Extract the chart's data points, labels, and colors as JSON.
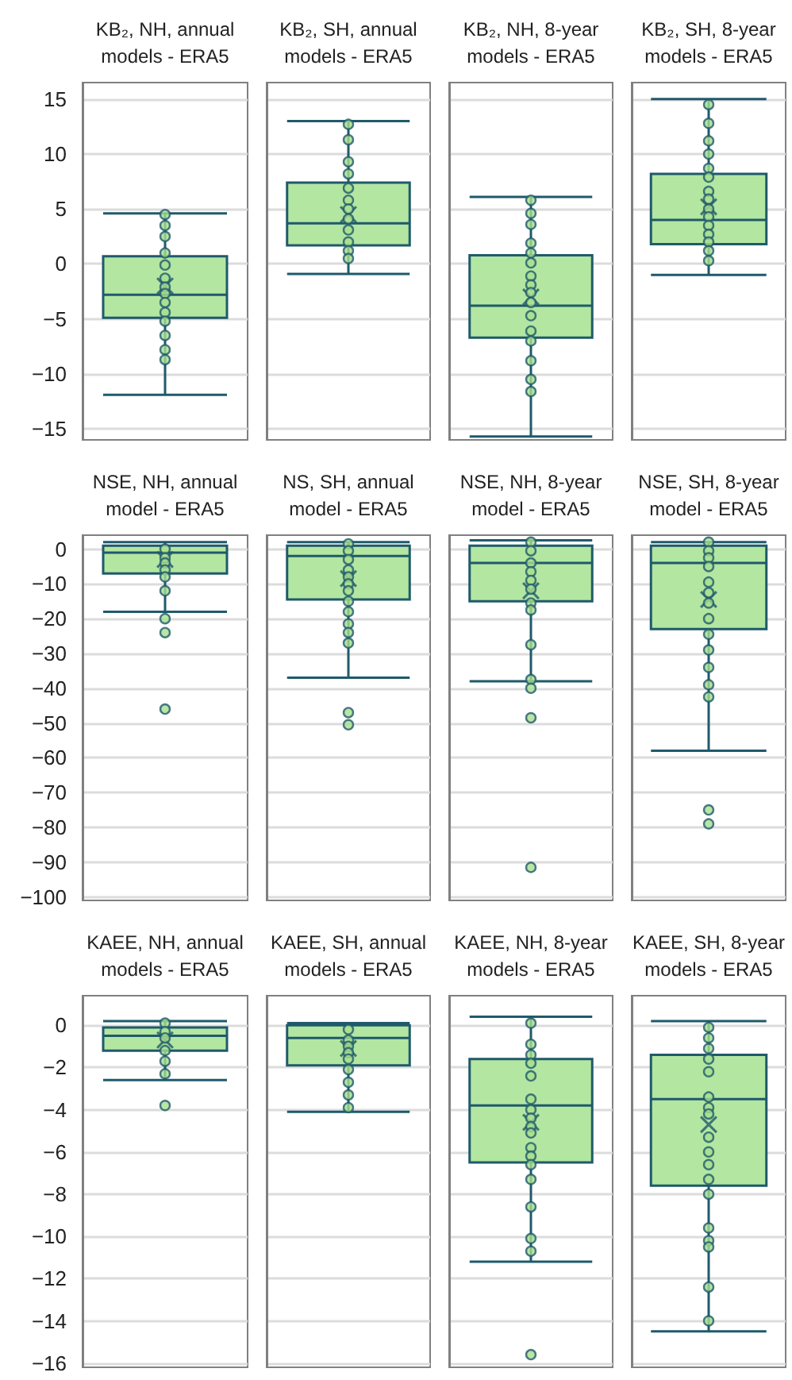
{
  "chart_data": [
    {
      "type": "box",
      "categories": [
        "KB₂, NH, annual\nmodels - ERA5",
        "KB₂, SH, annual\nmodels - ERA5",
        "KB₂, NH, 8-year\nmodels - ERA5",
        "KB₂, SH, 8-year\nmodels - ERA5"
      ],
      "ylim": [
        -16,
        16.5
      ],
      "yticks": [
        -15,
        -10,
        -5,
        0,
        5,
        10,
        15
      ],
      "grid": "y",
      "marker": "circle",
      "series": [
        {
          "type": "box",
          "color": "#b3e6a1",
          "boxes": [
            {
              "low": -11.9,
              "q1": -4.9,
              "median": -2.8,
              "q3": 0.7,
              "high": 4.6,
              "mean": -2.0
            },
            {
              "low": -0.9,
              "q1": 1.7,
              "median": 3.7,
              "q3": 7.4,
              "high": 13.0,
              "mean": 4.5
            },
            {
              "low": -15.7,
              "q1": -6.7,
              "median": -3.8,
              "q3": 0.8,
              "high": 6.1,
              "mean": -3.0
            },
            {
              "low": -1.0,
              "q1": 1.8,
              "median": 4.0,
              "q3": 8.2,
              "high": 15.0,
              "mean": 5.2
            }
          ]
        },
        {
          "type": "scatter",
          "color": "#a7df8f",
          "x": [
            "KB₂, NH, annual\nmodels - ERA5",
            "KB₂, NH, annual\nmodels - ERA5",
            "KB₂, NH, annual\nmodels - ERA5",
            "KB₂, NH, annual\nmodels - ERA5",
            "KB₂, NH, annual\nmodels - ERA5",
            "KB₂, NH, annual\nmodels - ERA5",
            "KB₂, NH, annual\nmodels - ERA5",
            "KB₂, NH, annual\nmodels - ERA5",
            "KB₂, NH, annual\nmodels - ERA5",
            "KB₂, NH, annual\nmodels - ERA5",
            "KB₂, NH, annual\nmodels - ERA5",
            "KB₂, NH, annual\nmodels - ERA5",
            "KB₂, NH, annual\nmodels - ERA5",
            "KB₂, NH, annual\nmodels - ERA5",
            "KB₂, SH, annual\nmodels - ERA5",
            "KB₂, SH, annual\nmodels - ERA5",
            "KB₂, SH, annual\nmodels - ERA5",
            "KB₂, SH, annual\nmodels - ERA5",
            "KB₂, SH, annual\nmodels - ERA5",
            "KB₂, SH, annual\nmodels - ERA5",
            "KB₂, SH, annual\nmodels - ERA5",
            "KB₂, SH, annual\nmodels - ERA5",
            "KB₂, SH, annual\nmodels - ERA5",
            "KB₂, SH, annual\nmodels - ERA5",
            "KB₂, SH, annual\nmodels - ERA5",
            "KB₂, SH, annual\nmodels - ERA5",
            "KB₂, NH, 8-year\nmodels - ERA5",
            "KB₂, NH, 8-year\nmodels - ERA5",
            "KB₂, NH, 8-year\nmodels - ERA5",
            "KB₂, NH, 8-year\nmodels - ERA5",
            "KB₂, NH, 8-year\nmodels - ERA5",
            "KB₂, NH, 8-year\nmodels - ERA5",
            "KB₂, NH, 8-year\nmodels - ERA5",
            "KB₂, NH, 8-year\nmodels - ERA5",
            "KB₂, NH, 8-year\nmodels - ERA5",
            "KB₂, NH, 8-year\nmodels - ERA5",
            "KB₂, NH, 8-year\nmodels - ERA5",
            "KB₂, NH, 8-year\nmodels - ERA5",
            "KB₂, NH, 8-year\nmodels - ERA5",
            "KB₂, NH, 8-year\nmodels - ERA5",
            "KB₂, NH, 8-year\nmodels - ERA5",
            "KB₂, NH, 8-year\nmodels - ERA5",
            "KB₂, SH, 8-year\nmodels - ERA5",
            "KB₂, SH, 8-year\nmodels - ERA5",
            "KB₂, SH, 8-year\nmodels - ERA5",
            "KB₂, SH, 8-year\nmodels - ERA5",
            "KB₂, SH, 8-year\nmodels - ERA5",
            "KB₂, SH, 8-year\nmodels - ERA5",
            "KB₂, SH, 8-year\nmodels - ERA5",
            "KB₂, SH, 8-year\nmodels - ERA5",
            "KB₂, SH, 8-year\nmodels - ERA5",
            "KB₂, SH, 8-year\nmodels - ERA5",
            "KB₂, SH, 8-year\nmodels - ERA5",
            "KB₂, SH, 8-year\nmodels - ERA5",
            "KB₂, SH, 8-year\nmodels - ERA5",
            "KB₂, SH, 8-year\nmodels - ERA5",
            "KB₂, SH, 8-year\nmodels - ERA5"
          ],
          "values": [
            4.5,
            3.5,
            2.5,
            1.0,
            -0.1,
            -1.3,
            -2.1,
            -2.7,
            -3.5,
            -4.4,
            -5.2,
            -6.5,
            -7.8,
            -8.7,
            12.7,
            11.3,
            9.3,
            8.2,
            6.9,
            5.8,
            5.0,
            4.1,
            3.1,
            2.0,
            1.2,
            0.5,
            5.8,
            4.6,
            3.6,
            1.9,
            1.0,
            0.1,
            -1.1,
            -1.9,
            -2.6,
            -3.5,
            -4.7,
            -6.1,
            -7.0,
            -8.8,
            -10.5,
            -11.6,
            14.5,
            12.8,
            11.2,
            10.0,
            8.7,
            7.9,
            6.6,
            5.9,
            5.0,
            4.3,
            3.5,
            2.7,
            2.0,
            1.2,
            0.3
          ]
        }
      ]
    },
    {
      "type": "box",
      "categories": [
        "NSE, NH, annual\nmodel - ERA5",
        "NS, SH, annual\nmodel - ERA5",
        "NSE, NH, 8-year\nmodel - ERA5",
        "NSE, SH, 8-year\nmodel - ERA5"
      ],
      "ylim": [
        -101,
        4
      ],
      "yticks": [
        -100,
        -90,
        -80,
        -70,
        -60,
        -50,
        -40,
        -30,
        -20,
        -10,
        0
      ],
      "grid": "y",
      "marker": "circle",
      "series": [
        {
          "type": "box",
          "color": "#b3e6a1",
          "boxes": [
            {
              "low": -18,
              "q1": -7,
              "median": -1,
              "q3": 1,
              "high": 2,
              "mean": -3
            },
            {
              "low": -37,
              "q1": -14.5,
              "median": -2,
              "q3": 1,
              "high": 2,
              "mean": -8.5
            },
            {
              "low": -38,
              "q1": -15,
              "median": -4,
              "q3": 1,
              "high": 2.5,
              "mean": -12
            },
            {
              "low": -58,
              "q1": -23,
              "median": -4,
              "q3": 1,
              "high": 2,
              "mean": -14.5
            }
          ]
        },
        {
          "type": "scatter",
          "color": "#a7df8f",
          "x": [
            "NSE, NH, annual\nmodel - ERA5",
            "NSE, NH, annual\nmodel - ERA5",
            "NSE, NH, annual\nmodel - ERA5",
            "NSE, NH, annual\nmodel - ERA5",
            "NSE, NH, annual\nmodel - ERA5",
            "NSE, NH, annual\nmodel - ERA5",
            "NSE, NH, annual\nmodel - ERA5",
            "NSE, NH, annual\nmodel - ERA5",
            "NSE, NH, annual\nmodel - ERA5",
            "NS, SH, annual\nmodel - ERA5",
            "NS, SH, annual\nmodel - ERA5",
            "NS, SH, annual\nmodel - ERA5",
            "NS, SH, annual\nmodel - ERA5",
            "NS, SH, annual\nmodel - ERA5",
            "NS, SH, annual\nmodel - ERA5",
            "NS, SH, annual\nmodel - ERA5",
            "NS, SH, annual\nmodel - ERA5",
            "NS, SH, annual\nmodel - ERA5",
            "NS, SH, annual\nmodel - ERA5",
            "NS, SH, annual\nmodel - ERA5",
            "NS, SH, annual\nmodel - ERA5",
            "NS, SH, annual\nmodel - ERA5",
            "NS, SH, annual\nmodel - ERA5",
            "NSE, NH, 8-year\nmodel - ERA5",
            "NSE, NH, 8-year\nmodel - ERA5",
            "NSE, NH, 8-year\nmodel - ERA5",
            "NSE, NH, 8-year\nmodel - ERA5",
            "NSE, NH, 8-year\nmodel - ERA5",
            "NSE, NH, 8-year\nmodel - ERA5",
            "NSE, NH, 8-year\nmodel - ERA5",
            "NSE, NH, 8-year\nmodel - ERA5",
            "NSE, NH, 8-year\nmodel - ERA5",
            "NSE, NH, 8-year\nmodel - ERA5",
            "NSE, NH, 8-year\nmodel - ERA5",
            "NSE, NH, 8-year\nmodel - ERA5",
            "NSE, NH, 8-year\nmodel - ERA5",
            "NSE, SH, 8-year\nmodel - ERA5",
            "NSE, SH, 8-year\nmodel - ERA5",
            "NSE, SH, 8-year\nmodel - ERA5",
            "NSE, SH, 8-year\nmodel - ERA5",
            "NSE, SH, 8-year\nmodel - ERA5",
            "NSE, SH, 8-year\nmodel - ERA5",
            "NSE, SH, 8-year\nmodel - ERA5",
            "NSE, SH, 8-year\nmodel - ERA5",
            "NSE, SH, 8-year\nmodel - ERA5",
            "NSE, SH, 8-year\nmodel - ERA5",
            "NSE, SH, 8-year\nmodel - ERA5",
            "NSE, SH, 8-year\nmodel - ERA5",
            "NSE, SH, 8-year\nmodel - ERA5",
            "NSE, SH, 8-year\nmodel - ERA5",
            "NSE, SH, 8-year\nmodel - ERA5"
          ],
          "values": [
            0,
            -2.5,
            -4,
            -6,
            -8,
            -12,
            -20,
            -24,
            -46,
            1.5,
            -0.5,
            -3,
            -6,
            -8,
            -10,
            -12,
            -15,
            -18,
            -21.5,
            -24,
            -27,
            -47,
            -50.5,
            2,
            -0.5,
            -4,
            -6.5,
            -9,
            -11.5,
            -15.5,
            -17.5,
            -27.5,
            -37.5,
            -40,
            -48.5,
            -91.5,
            2,
            -0.5,
            -2.5,
            -5,
            -9.5,
            -12.5,
            -15.5,
            -20,
            -24.5,
            -29,
            -34,
            -39,
            -42.5,
            -75,
            -79
          ]
        }
      ]
    },
    {
      "type": "box",
      "categories": [
        "KAEE, NH, annual\nmodels - ERA5",
        "KAEE, SH, annual\nmodels - ERA5",
        "KAEE, NH, 8-year\nmodels - ERA5",
        "KAEE, SH, 8-year\nmodels - ERA5"
      ],
      "ylim": [
        -16.2,
        1.4
      ],
      "yticks": [
        -16,
        -14,
        -12,
        -10,
        -8,
        -6,
        -4,
        -2,
        0
      ],
      "grid": "y",
      "marker": "circle",
      "series": [
        {
          "type": "box",
          "color": "#b3e6a1",
          "boxes": [
            {
              "low": -2.6,
              "q1": -1.2,
              "median": -0.5,
              "q3": -0.1,
              "high": 0.2,
              "mean": -0.7
            },
            {
              "low": -4.1,
              "q1": -1.9,
              "median": -0.6,
              "q3": 0,
              "high": 0.1,
              "mean": -1.1
            },
            {
              "low": -11.2,
              "q1": -6.5,
              "median": -3.8,
              "q3": -1.6,
              "high": 0.4,
              "mean": -4.6
            },
            {
              "low": -14.5,
              "q1": -7.6,
              "median": -3.5,
              "q3": -1.4,
              "high": 0.2,
              "mean": -4.7
            }
          ]
        },
        {
          "type": "scatter",
          "color": "#a7df8f",
          "x": [
            "KAEE, NH, annual\nmodels - ERA5",
            "KAEE, NH, annual\nmodels - ERA5",
            "KAEE, NH, annual\nmodels - ERA5",
            "KAEE, NH, annual\nmodels - ERA5",
            "KAEE, NH, annual\nmodels - ERA5",
            "KAEE, NH, annual\nmodels - ERA5",
            "KAEE, NH, annual\nmodels - ERA5",
            "KAEE, SH, annual\nmodels - ERA5",
            "KAEE, SH, annual\nmodels - ERA5",
            "KAEE, SH, annual\nmodels - ERA5",
            "KAEE, SH, annual\nmodels - ERA5",
            "KAEE, SH, annual\nmodels - ERA5",
            "KAEE, SH, annual\nmodels - ERA5",
            "KAEE, SH, annual\nmodels - ERA5",
            "KAEE, SH, annual\nmodels - ERA5",
            "KAEE, SH, annual\nmodels - ERA5",
            "KAEE, NH, 8-year\nmodels - ERA5",
            "KAEE, NH, 8-year\nmodels - ERA5",
            "KAEE, NH, 8-year\nmodels - ERA5",
            "KAEE, NH, 8-year\nmodels - ERA5",
            "KAEE, NH, 8-year\nmodels - ERA5",
            "KAEE, NH, 8-year\nmodels - ERA5",
            "KAEE, NH, 8-year\nmodels - ERA5",
            "KAEE, NH, 8-year\nmodels - ERA5",
            "KAEE, NH, 8-year\nmodels - ERA5",
            "KAEE, NH, 8-year\nmodels - ERA5",
            "KAEE, NH, 8-year\nmodels - ERA5",
            "KAEE, NH, 8-year\nmodels - ERA5",
            "KAEE, NH, 8-year\nmodels - ERA5",
            "KAEE, NH, 8-year\nmodels - ERA5",
            "KAEE, NH, 8-year\nmodels - ERA5",
            "KAEE, NH, 8-year\nmodels - ERA5",
            "KAEE, NH, 8-year\nmodels - ERA5",
            "KAEE, NH, 8-year\nmodels - ERA5",
            "KAEE, SH, 8-year\nmodels - ERA5",
            "KAEE, SH, 8-year\nmodels - ERA5",
            "KAEE, SH, 8-year\nmodels - ERA5",
            "KAEE, SH, 8-year\nmodels - ERA5",
            "KAEE, SH, 8-year\nmodels - ERA5",
            "KAEE, SH, 8-year\nmodels - ERA5",
            "KAEE, SH, 8-year\nmodels - ERA5",
            "KAEE, SH, 8-year\nmodels - ERA5",
            "KAEE, SH, 8-year\nmodels - ERA5",
            "KAEE, SH, 8-year\nmodels - ERA5",
            "KAEE, SH, 8-year\nmodels - ERA5",
            "KAEE, SH, 8-year\nmodels - ERA5",
            "KAEE, SH, 8-year\nmodels - ERA5",
            "KAEE, SH, 8-year\nmodels - ERA5",
            "KAEE, SH, 8-year\nmodels - ERA5",
            "KAEE, SH, 8-year\nmodels - ERA5",
            "KAEE, SH, 8-year\nmodels - ERA5",
            "KAEE, SH, 8-year\nmodels - ERA5"
          ],
          "values": [
            0.1,
            -0.3,
            -0.6,
            -1.2,
            -1.7,
            -2.3,
            -3.8,
            -0.2,
            -0.7,
            -1.0,
            -1.3,
            -1.6,
            -2.1,
            -2.7,
            -3.3,
            -3.9,
            0.1,
            -0.9,
            -1.4,
            -1.8,
            -2.4,
            -3.5,
            -4.0,
            -4.4,
            -4.8,
            -5.1,
            -5.8,
            -6.2,
            -6.6,
            -7.3,
            -8.6,
            -10.1,
            -10.7,
            -15.6,
            -0.1,
            -0.6,
            -1.1,
            -1.6,
            -2.2,
            -3.4,
            -3.9,
            -4.2,
            -5.3,
            -6.0,
            -6.6,
            -7.3,
            -8.0,
            -9.6,
            -10.2,
            -10.5,
            -12.4,
            -14.0
          ]
        }
      ]
    }
  ]
}
